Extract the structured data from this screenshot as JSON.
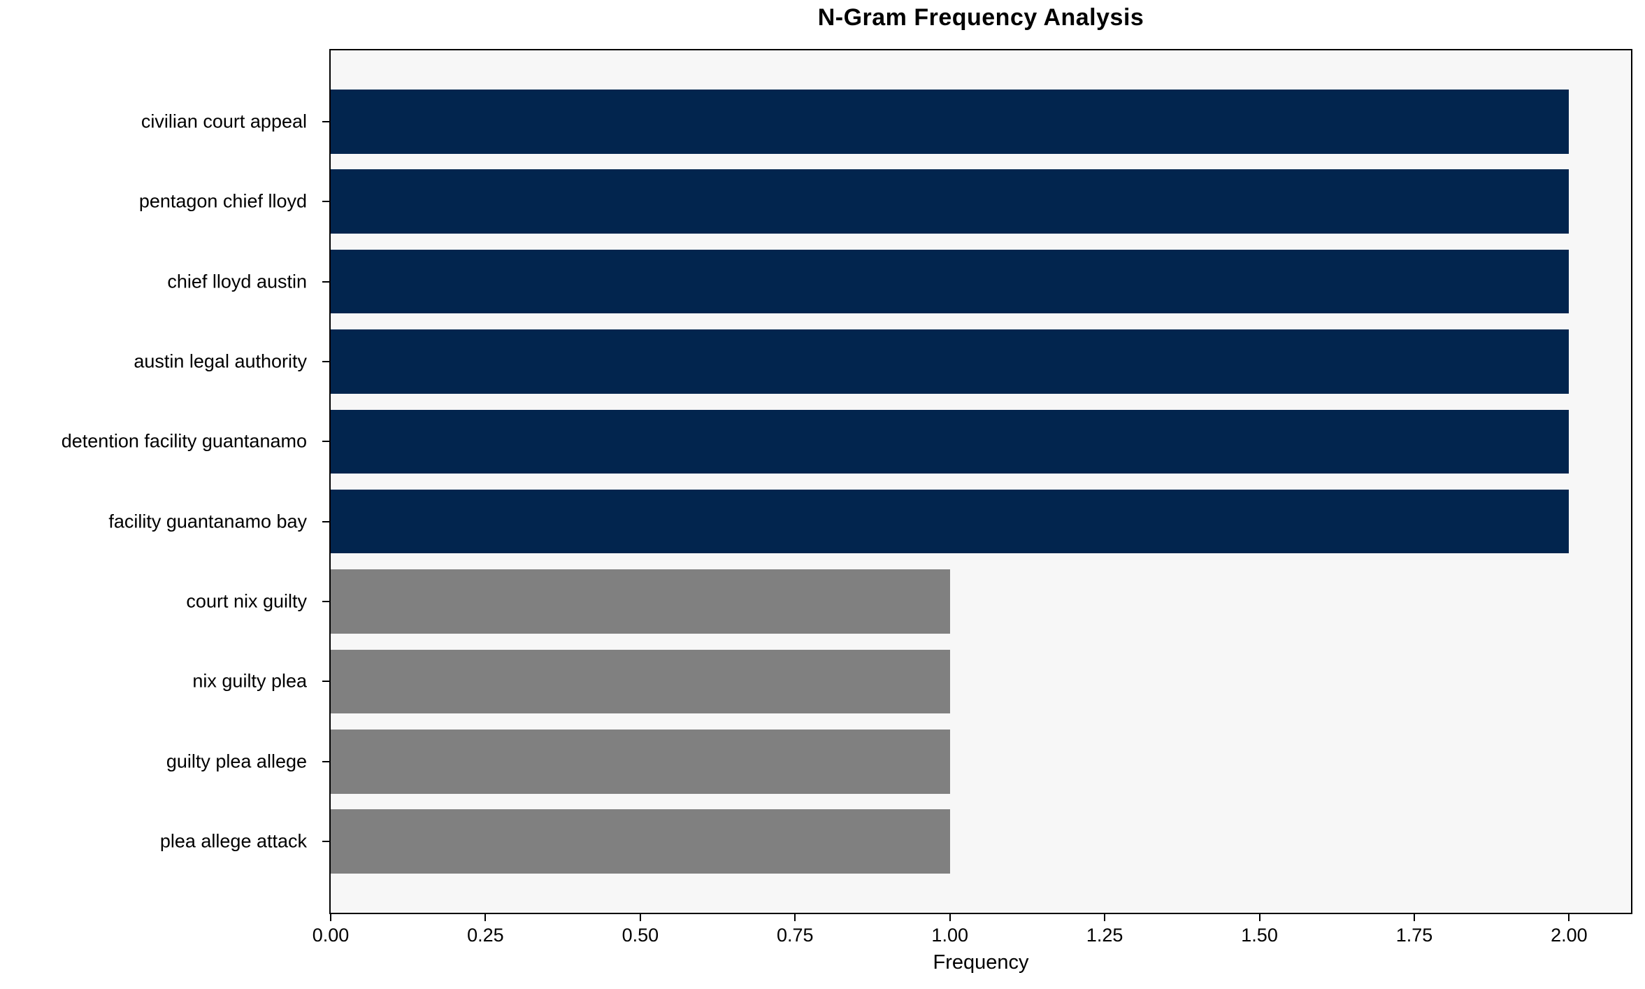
{
  "chart_data": {
    "type": "bar",
    "orientation": "horizontal",
    "title": "N-Gram Frequency Analysis",
    "xlabel": "Frequency",
    "ylabel": "",
    "categories": [
      "civilian court appeal",
      "pentagon chief lloyd",
      "chief lloyd austin",
      "austin legal authority",
      "detention facility guantanamo",
      "facility guantanamo bay",
      "court nix guilty",
      "nix guilty plea",
      "guilty plea allege",
      "plea allege attack"
    ],
    "values": [
      2,
      2,
      2,
      2,
      2,
      2,
      1,
      1,
      1,
      1
    ],
    "bar_colors": [
      "#02254e",
      "#02254e",
      "#02254e",
      "#02254e",
      "#02254e",
      "#02254e",
      "#808080",
      "#808080",
      "#808080",
      "#808080"
    ],
    "xlim": [
      0,
      2.1
    ],
    "xticks": [
      {
        "value": 0.0,
        "label": "0.00"
      },
      {
        "value": 0.25,
        "label": "0.25"
      },
      {
        "value": 0.5,
        "label": "0.50"
      },
      {
        "value": 0.75,
        "label": "0.75"
      },
      {
        "value": 1.0,
        "label": "1.00"
      },
      {
        "value": 1.25,
        "label": "1.25"
      },
      {
        "value": 1.5,
        "label": "1.50"
      },
      {
        "value": 1.75,
        "label": "1.75"
      },
      {
        "value": 2.0,
        "label": "2.00"
      }
    ],
    "grid": false,
    "legend": false,
    "colors": {
      "bar_high": "#02254e",
      "bar_low": "#808080",
      "plot_background": "#f7f7f7",
      "figure_background": "#ffffff",
      "spine": "#000000",
      "text": "#000000"
    }
  }
}
